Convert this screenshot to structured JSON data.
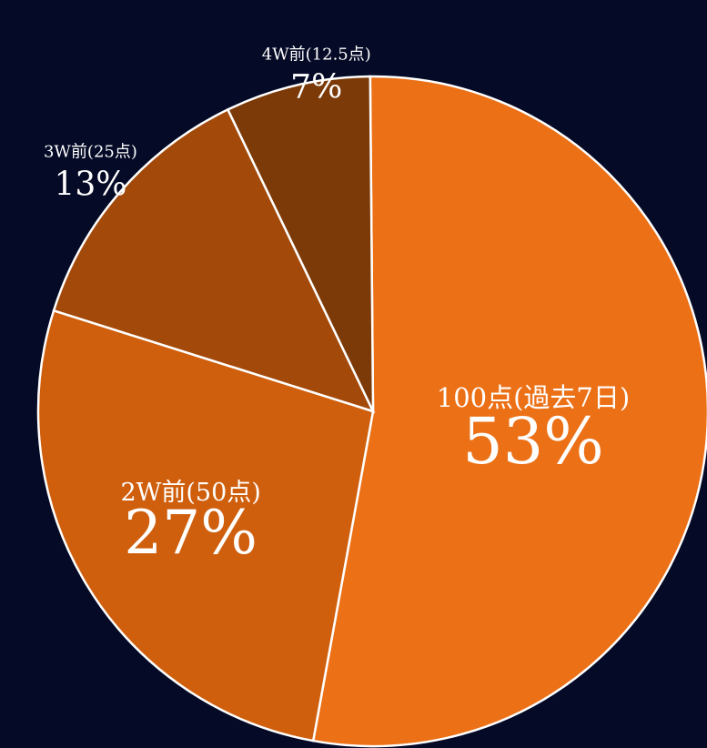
{
  "chart_data": {
    "type": "pie",
    "title": "",
    "background": "#050a26",
    "slices": [
      {
        "label": "100点(過去7日)",
        "percent_label": "53%",
        "value": 53,
        "color": "#ec7016"
      },
      {
        "label": "2W前(50点)",
        "percent_label": "27%",
        "value": 27,
        "color": "#cf5f0d"
      },
      {
        "label": "3W前(25点)",
        "percent_label": "13%",
        "value": 13,
        "color": "#a34a0b"
      },
      {
        "label": "4W前(12.5点)",
        "percent_label": "7%",
        "value": 7,
        "color": "#7c3a08"
      }
    ]
  }
}
